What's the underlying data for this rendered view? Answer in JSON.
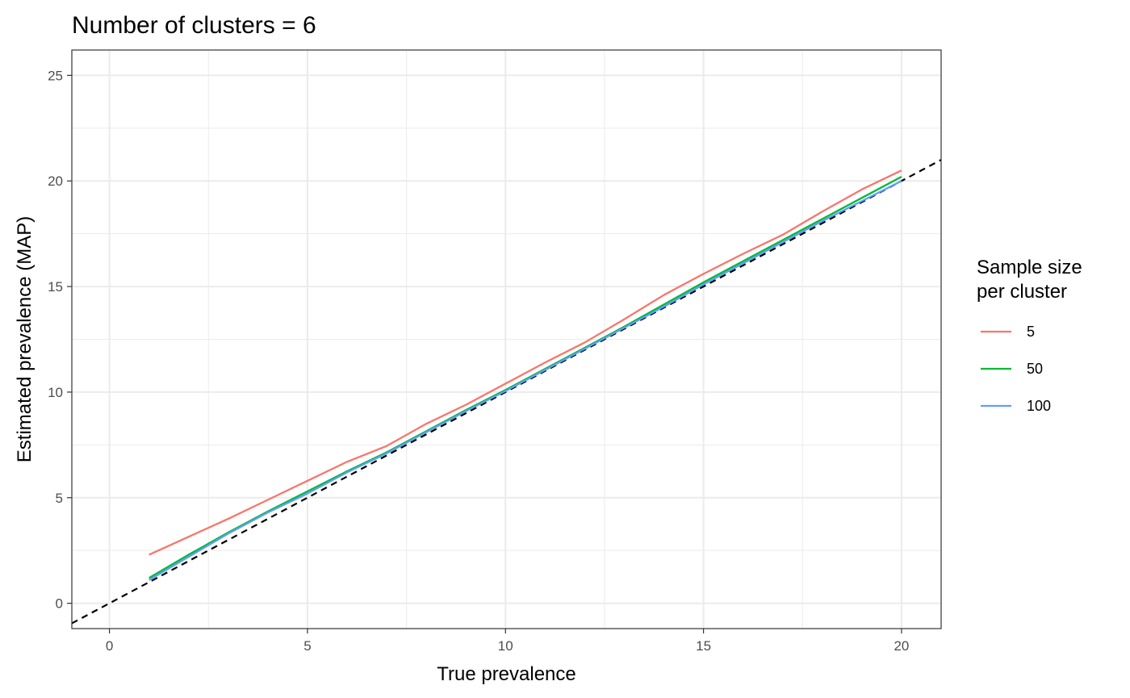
{
  "chart_data": {
    "type": "line",
    "title": "Number of clusters = 6",
    "xlabel": "True prevalence",
    "ylabel": "Estimated prevalence (MAP)",
    "xlim": [
      -0.95,
      21
    ],
    "ylim": [
      -1.2,
      26.2
    ],
    "x_ticks": [
      0,
      5,
      10,
      15,
      20
    ],
    "y_ticks": [
      0,
      5,
      10,
      15,
      20,
      25
    ],
    "grid": true,
    "legend": {
      "title": [
        "Sample size",
        "per cluster"
      ],
      "placement": "right",
      "entries": [
        "5",
        "50",
        "100"
      ]
    },
    "x": [
      1,
      2,
      3,
      4,
      5,
      6,
      7,
      8,
      9,
      10,
      11,
      12,
      13,
      14,
      15,
      16,
      17,
      18,
      19,
      20
    ],
    "series": [
      {
        "name": "5",
        "color": "#F8766D",
        "values": [
          2.3,
          3.15,
          4.0,
          4.9,
          5.8,
          6.7,
          7.45,
          8.5,
          9.4,
          10.4,
          11.4,
          12.35,
          13.45,
          14.6,
          15.6,
          16.55,
          17.45,
          18.55,
          19.6,
          20.5
        ]
      },
      {
        "name": "50",
        "color": "#00BA38",
        "values": [
          1.2,
          2.3,
          3.35,
          4.35,
          5.3,
          6.25,
          7.15,
          8.15,
          9.15,
          10.1,
          11.1,
          12.1,
          13.1,
          14.15,
          15.2,
          16.2,
          17.2,
          18.2,
          19.2,
          20.2
        ]
      },
      {
        "name": "100",
        "color": "#619CFF",
        "values": [
          1.1,
          2.2,
          3.3,
          4.3,
          5.2,
          6.2,
          7.1,
          8.1,
          9.1,
          10.05,
          11.05,
          12.05,
          13.05,
          14.05,
          15.1,
          16.1,
          17.1,
          18.1,
          19.05,
          20.0
        ]
      }
    ],
    "reference_line": {
      "slope": 1,
      "intercept": 0,
      "color": "#000000",
      "style": "dashed"
    }
  }
}
